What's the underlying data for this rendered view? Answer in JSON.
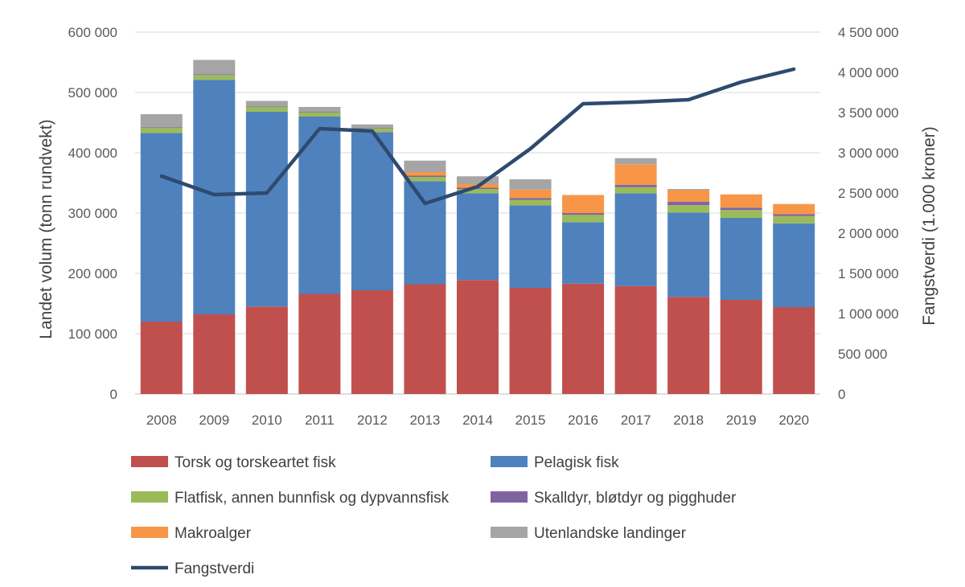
{
  "chart_data": {
    "type": "bar",
    "stacked": true,
    "categories": [
      "2008",
      "2009",
      "2010",
      "2011",
      "2012",
      "2013",
      "2014",
      "2015",
      "2016",
      "2017",
      "2018",
      "2019",
      "2020"
    ],
    "series": [
      {
        "name": "Torsk og torskeartet fisk",
        "color": "#C0504D",
        "values": [
          120000,
          132000,
          145000,
          166000,
          172000,
          182000,
          189000,
          176000,
          183000,
          179000,
          161000,
          156000,
          144000
        ]
      },
      {
        "name": "Pelagisk fisk",
        "color": "#4F81BD",
        "values": [
          313000,
          389000,
          323000,
          294000,
          262000,
          171000,
          144000,
          137000,
          102000,
          154000,
          140000,
          136000,
          139000
        ]
      },
      {
        "name": "Flatfisk, annen bunnfisk og dypvannsfisk",
        "color": "#9BBB59",
        "values": [
          8000,
          8000,
          8000,
          7000,
          6000,
          7000,
          7000,
          9000,
          12000,
          10000,
          12000,
          13000,
          12000
        ]
      },
      {
        "name": "Skalldyr, bløtdyr og pigghuder",
        "color": "#8064A2",
        "values": [
          1000,
          1000,
          1000,
          1000,
          1000,
          2000,
          2000,
          3000,
          3000,
          4000,
          6000,
          4000,
          3000
        ]
      },
      {
        "name": "Makroalger",
        "color": "#F79646",
        "values": [
          0,
          0,
          0,
          0,
          0,
          6000,
          6000,
          14000,
          30000,
          34000,
          19000,
          22000,
          17000
        ]
      },
      {
        "name": "Utenlandske landinger",
        "color": "#A5A5A5",
        "values": [
          22000,
          24000,
          9000,
          8000,
          6000,
          19000,
          13000,
          17000,
          0,
          10000,
          2000,
          0,
          0
        ]
      }
    ],
    "line_series": {
      "name": "Fangstverdi",
      "color": "#2E4A6E",
      "axis": "right",
      "values": [
        2710000,
        2480000,
        2500000,
        3300000,
        3270000,
        2370000,
        2580000,
        3050000,
        3610000,
        3630000,
        3660000,
        3880000,
        4040000
      ]
    },
    "ylabel": "Landet volum (tonn rundvekt)",
    "y2label": "Fangstverdi (1.000 kroner)",
    "ylim": [
      0,
      600000
    ],
    "y2lim": [
      0,
      4500000
    ],
    "yticks": [
      "0",
      "100 000",
      "200 000",
      "300 000",
      "400 000",
      "500 000",
      "600 000"
    ],
    "y2ticks": [
      "0",
      "500 000",
      "1 000 000",
      "1 500 000",
      "2 000 000",
      "2 500 000",
      "3 000 000",
      "3 500 000",
      "4 000 000",
      "4 500 000"
    ],
    "grid": true,
    "legend": "bottom"
  }
}
